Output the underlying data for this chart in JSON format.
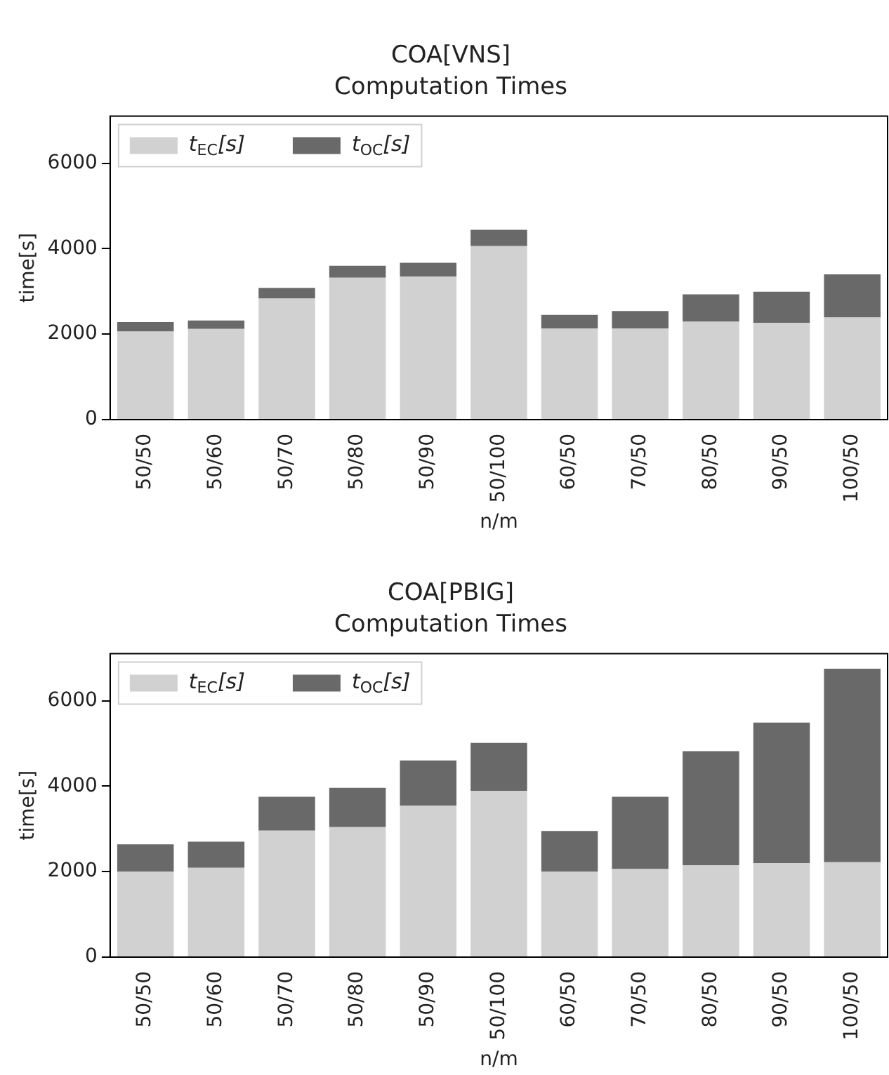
{
  "chart_data": [
    {
      "type": "bar",
      "title": "COA[VNS]",
      "subtitle": "Computation Times",
      "xlabel": "n/m",
      "ylabel": "time[s]",
      "categories": [
        "50/50",
        "50/60",
        "50/70",
        "50/80",
        "50/90",
        "50/100",
        "60/50",
        "70/50",
        "80/50",
        "90/50",
        "100/50"
      ],
      "series": [
        {
          "name": "t$_{EC}$[s]",
          "color": "#d0d1d0",
          "values": [
            2060,
            2120,
            2830,
            3320,
            3350,
            4060,
            2130,
            2130,
            2290,
            2260,
            2390
          ]
        },
        {
          "name": "t$_{OC}$[s]",
          "color": "#696969",
          "values": [
            220,
            200,
            250,
            280,
            320,
            380,
            320,
            410,
            640,
            730,
            1010
          ]
        }
      ],
      "stacked": true,
      "ylim": [
        0,
        7100
      ],
      "yticks": [
        0,
        2000,
        4000,
        6000
      ],
      "grid": false,
      "legend": "top left"
    },
    {
      "type": "bar",
      "title": "COA[PBIG]",
      "subtitle": "Computation Times",
      "xlabel": "n/m",
      "ylabel": "time[s]",
      "categories": [
        "50/50",
        "50/60",
        "50/70",
        "50/80",
        "50/90",
        "50/100",
        "60/50",
        "70/50",
        "80/50",
        "90/50",
        "100/50"
      ],
      "series": [
        {
          "name": "t$_{EC}$[s]",
          "color": "#d0d1d0",
          "values": [
            2000,
            2090,
            2960,
            3040,
            3540,
            3890,
            2000,
            2060,
            2150,
            2200,
            2220
          ]
        },
        {
          "name": "t$_{OC}$[s]",
          "color": "#696969",
          "values": [
            640,
            610,
            790,
            920,
            1060,
            1120,
            950,
            1690,
            2670,
            3290,
            4530
          ]
        }
      ],
      "stacked": true,
      "ylim": [
        0,
        7100
      ],
      "yticks": [
        0,
        2000,
        4000,
        6000
      ],
      "grid": false,
      "legend": "top left"
    }
  ]
}
